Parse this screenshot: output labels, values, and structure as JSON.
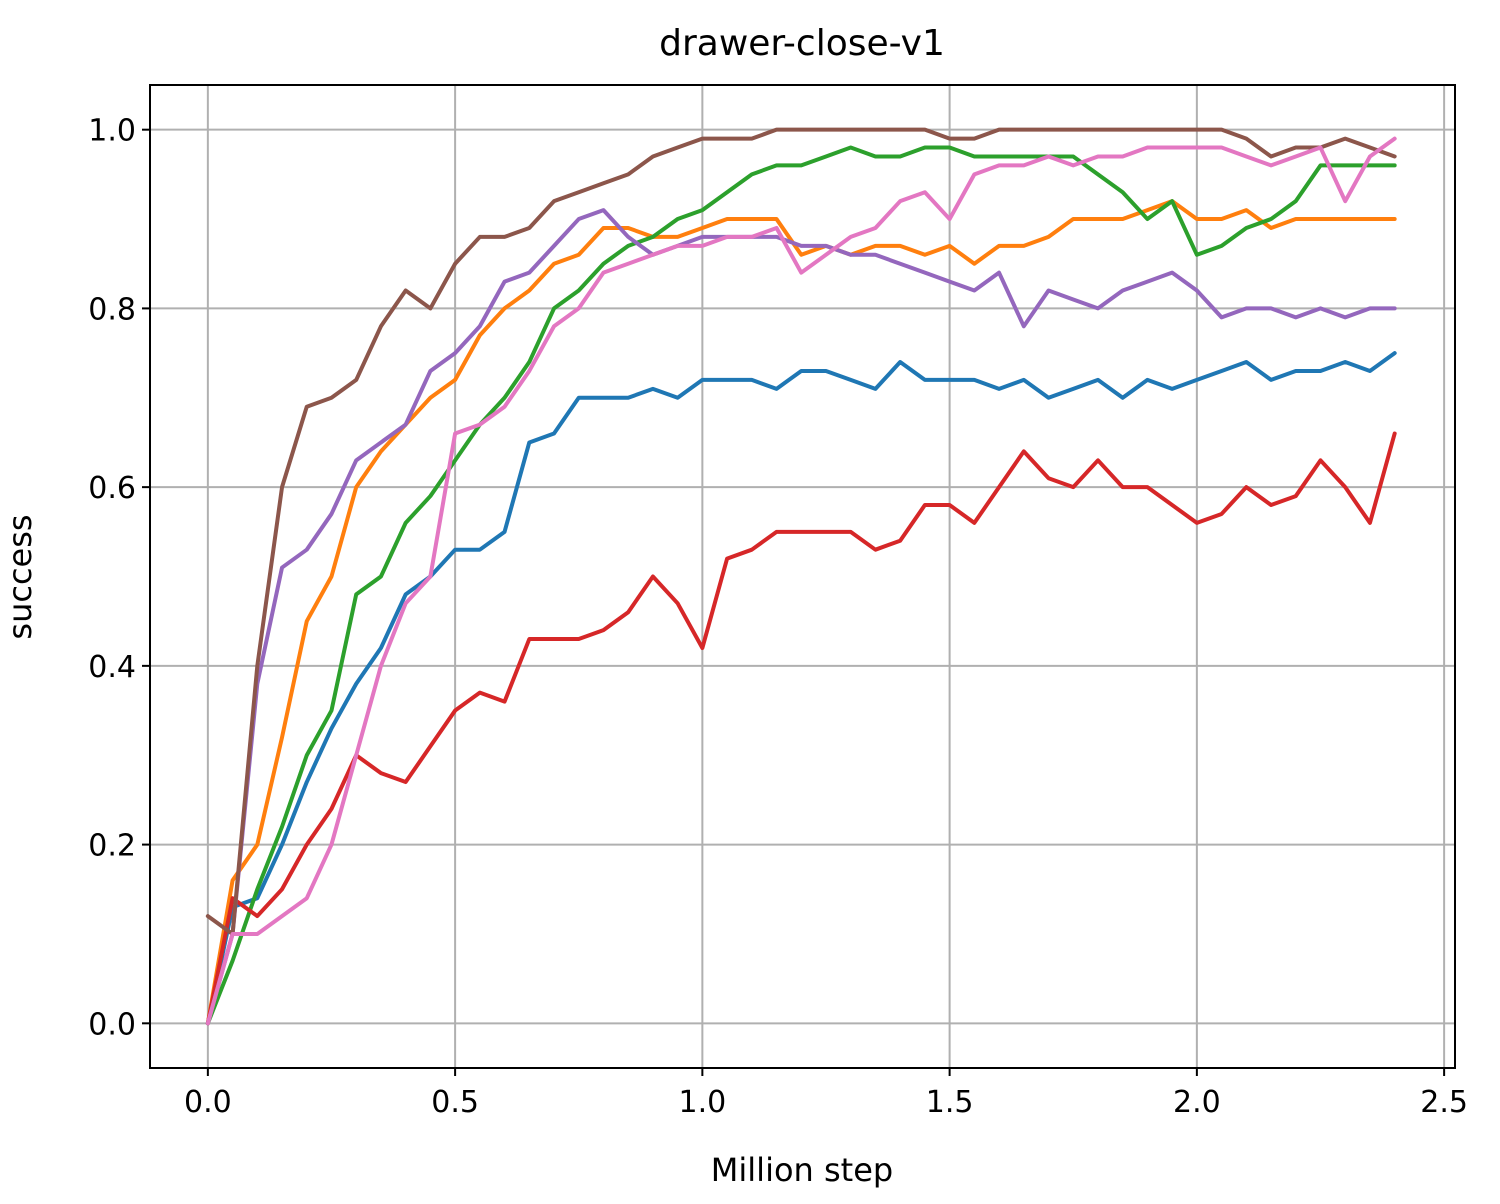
{
  "chart_data": {
    "type": "line",
    "title": "drawer-close-v1",
    "xlabel": "Million step",
    "ylabel": "success",
    "grid": true,
    "xlim": [
      -0.117,
      2.522
    ],
    "ylim": [
      -0.05,
      1.05
    ],
    "xticks": [
      {
        "value": 0,
        "label": "0.0"
      },
      0.5,
      {
        "value": 1,
        "label": "1.0"
      },
      1.5,
      {
        "value": 2,
        "label": "2.0"
      },
      2.5
    ],
    "yticks": [
      {
        "value": 0,
        "label": "0.0"
      },
      0.2,
      0.4,
      0.6,
      0.8,
      {
        "value": 1,
        "label": "1.0"
      }
    ],
    "x": [
      0,
      0.05,
      0.1,
      0.15,
      0.2,
      0.25,
      0.3,
      0.35,
      0.4,
      0.45,
      0.5,
      0.55,
      0.6,
      0.65,
      0.7,
      0.75,
      0.8,
      0.85,
      0.9,
      0.95,
      1.0,
      1.05,
      1.1,
      1.15,
      1.2,
      1.25,
      1.3,
      1.35,
      1.4,
      1.45,
      1.5,
      1.55,
      1.6,
      1.65,
      1.7,
      1.75,
      1.8,
      1.85,
      1.9,
      1.95,
      2.0,
      2.05,
      2.1,
      2.15,
      2.2,
      2.25,
      2.3,
      2.35,
      2.4
    ],
    "series": [
      {
        "color": "#1f77b4",
        "values": [
          0,
          0.13,
          0.14,
          0.2,
          0.27,
          0.33,
          0.38,
          0.42,
          0.48,
          0.5,
          0.53,
          0.53,
          0.55,
          0.65,
          0.66,
          0.7,
          0.7,
          0.7,
          0.71,
          0.7,
          0.72,
          0.72,
          0.72,
          0.71,
          0.73,
          0.73,
          0.72,
          0.71,
          0.74,
          0.72,
          0.72,
          0.72,
          0.71,
          0.72,
          0.7,
          0.71,
          0.72,
          0.7,
          0.72,
          0.71,
          0.72,
          0.73,
          0.74,
          0.72,
          0.73,
          0.73,
          0.74,
          0.73,
          0.75
        ]
      },
      {
        "color": "#ff7f0e",
        "values": [
          0,
          0.16,
          0.2,
          0.32,
          0.45,
          0.5,
          0.6,
          0.64,
          0.67,
          0.7,
          0.72,
          0.77,
          0.8,
          0.82,
          0.85,
          0.86,
          0.89,
          0.89,
          0.88,
          0.88,
          0.89,
          0.9,
          0.9,
          0.9,
          0.86,
          0.87,
          0.86,
          0.87,
          0.87,
          0.86,
          0.87,
          0.85,
          0.87,
          0.87,
          0.88,
          0.9,
          0.9,
          0.9,
          0.91,
          0.92,
          0.9,
          0.9,
          0.91,
          0.89,
          0.9,
          0.9,
          0.9,
          0.9,
          0.9
        ]
      },
      {
        "color": "#2ca02c",
        "values": [
          0,
          0.07,
          0.15,
          0.22,
          0.3,
          0.35,
          0.48,
          0.5,
          0.56,
          0.59,
          0.63,
          0.67,
          0.7,
          0.74,
          0.8,
          0.82,
          0.85,
          0.87,
          0.88,
          0.9,
          0.91,
          0.93,
          0.95,
          0.96,
          0.96,
          0.97,
          0.98,
          0.97,
          0.97,
          0.98,
          0.98,
          0.97,
          0.97,
          0.97,
          0.97,
          0.97,
          0.95,
          0.93,
          0.9,
          0.92,
          0.86,
          0.87,
          0.89,
          0.9,
          0.92,
          0.96,
          0.96,
          0.96,
          0.96
        ]
      },
      {
        "color": "#d62728",
        "values": [
          0,
          0.14,
          0.12,
          0.15,
          0.2,
          0.24,
          0.3,
          0.28,
          0.27,
          0.31,
          0.35,
          0.37,
          0.36,
          0.43,
          0.43,
          0.43,
          0.44,
          0.46,
          0.5,
          0.47,
          0.42,
          0.52,
          0.53,
          0.55,
          0.55,
          0.55,
          0.55,
          0.53,
          0.54,
          0.58,
          0.58,
          0.56,
          0.6,
          0.64,
          0.61,
          0.6,
          0.63,
          0.6,
          0.6,
          0.58,
          0.56,
          0.57,
          0.6,
          0.58,
          0.59,
          0.63,
          0.6,
          0.56,
          0.66
        ]
      },
      {
        "color": "#9467bd",
        "values": [
          0,
          0.1,
          0.38,
          0.51,
          0.53,
          0.57,
          0.63,
          0.65,
          0.67,
          0.73,
          0.75,
          0.78,
          0.83,
          0.84,
          0.87,
          0.9,
          0.91,
          0.88,
          0.86,
          0.87,
          0.88,
          0.88,
          0.88,
          0.88,
          0.87,
          0.87,
          0.86,
          0.86,
          0.85,
          0.84,
          0.83,
          0.82,
          0.84,
          0.78,
          0.82,
          0.81,
          0.8,
          0.82,
          0.83,
          0.84,
          0.82,
          0.79,
          0.8,
          0.8,
          0.79,
          0.8,
          0.79,
          0.8,
          0.8
        ]
      },
      {
        "color": "#8c564b",
        "values": [
          0.12,
          0.1,
          0.4,
          0.6,
          0.69,
          0.7,
          0.72,
          0.78,
          0.82,
          0.8,
          0.85,
          0.88,
          0.88,
          0.89,
          0.92,
          0.93,
          0.94,
          0.95,
          0.97,
          0.98,
          0.99,
          0.99,
          0.99,
          1,
          1,
          1,
          1,
          1,
          1,
          1,
          0.99,
          0.99,
          1,
          1,
          1,
          1,
          1,
          1,
          1,
          1,
          1,
          1,
          0.99,
          0.97,
          0.98,
          0.98,
          0.99,
          0.98,
          0.97
        ]
      },
      {
        "color": "#e377c2",
        "values": [
          0,
          0.1,
          0.1,
          0.12,
          0.14,
          0.2,
          0.3,
          0.4,
          0.47,
          0.5,
          0.66,
          0.67,
          0.69,
          0.73,
          0.78,
          0.8,
          0.84,
          0.85,
          0.86,
          0.87,
          0.87,
          0.88,
          0.88,
          0.89,
          0.84,
          0.86,
          0.88,
          0.89,
          0.92,
          0.93,
          0.9,
          0.95,
          0.96,
          0.96,
          0.97,
          0.96,
          0.97,
          0.97,
          0.98,
          0.98,
          0.98,
          0.98,
          0.97,
          0.96,
          0.97,
          0.98,
          0.92,
          0.97,
          0.99
        ]
      }
    ]
  }
}
